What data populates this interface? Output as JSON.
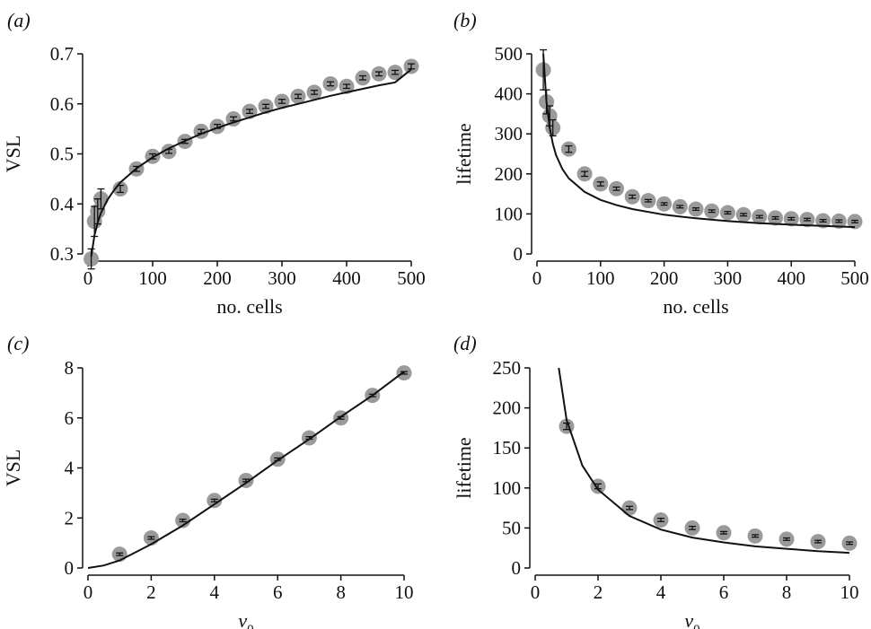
{
  "colors": {
    "points": "#9a9a9a",
    "curve": "#111111",
    "axes": "#111111",
    "background": "#ffffff"
  },
  "chart_data": [
    {
      "id": "a",
      "panel_label": "(a)",
      "type": "scatter",
      "xlabel": "no. cells",
      "xlabel_sub": "",
      "ylabel": "VSL",
      "xlim": [
        0,
        500
      ],
      "ylim": [
        0.3,
        0.7
      ],
      "xticks": [
        0,
        100,
        200,
        300,
        400,
        500
      ],
      "yticks": [
        0.3,
        0.4,
        0.5,
        0.6,
        0.7
      ],
      "ytick_labels": [
        "0.3",
        "0.4",
        "0.5",
        "0.6",
        "0.7"
      ],
      "grid": false,
      "points": {
        "x": [
          5,
          10,
          15,
          20,
          50,
          75,
          100,
          125,
          150,
          175,
          200,
          225,
          250,
          275,
          300,
          325,
          350,
          375,
          400,
          425,
          450,
          475,
          500
        ],
        "y": [
          0.29,
          0.365,
          0.385,
          0.41,
          0.43,
          0.47,
          0.495,
          0.505,
          0.525,
          0.545,
          0.555,
          0.57,
          0.585,
          0.595,
          0.605,
          0.615,
          0.623,
          0.64,
          0.635,
          0.652,
          0.66,
          0.663,
          0.675
        ],
        "err": [
          0.02,
          0.03,
          0.025,
          0.02,
          0.007,
          0.005,
          0.005,
          0.004,
          0.004,
          0.004,
          0.004,
          0.004,
          0.004,
          0.004,
          0.004,
          0.004,
          0.004,
          0.004,
          0.004,
          0.004,
          0.004,
          0.004,
          0.005
        ]
      },
      "curve": {
        "x": [
          5,
          10,
          15,
          20,
          30,
          40,
          50,
          75,
          100,
          125,
          150,
          175,
          200,
          225,
          250,
          275,
          300,
          325,
          350,
          375,
          400,
          425,
          450,
          475,
          500
        ],
        "y": [
          0.295,
          0.337,
          0.363,
          0.382,
          0.408,
          0.427,
          0.443,
          0.471,
          0.493,
          0.511,
          0.526,
          0.54,
          0.552,
          0.563,
          0.573,
          0.583,
          0.592,
          0.6,
          0.608,
          0.616,
          0.623,
          0.63,
          0.637,
          0.643,
          0.669
        ]
      }
    },
    {
      "id": "b",
      "panel_label": "(b)",
      "type": "scatter",
      "xlabel": "no. cells",
      "xlabel_sub": "",
      "ylabel": "lifetime",
      "xlim": [
        0,
        500
      ],
      "ylim": [
        0,
        500
      ],
      "xticks": [
        0,
        100,
        200,
        300,
        400,
        500
      ],
      "yticks": [
        0,
        100,
        200,
        300,
        400,
        500
      ],
      "ytick_labels": [
        "0",
        "100",
        "200",
        "300",
        "400",
        "500"
      ],
      "grid": false,
      "points": {
        "x": [
          10,
          15,
          20,
          25,
          50,
          75,
          100,
          125,
          150,
          175,
          200,
          225,
          250,
          275,
          300,
          325,
          350,
          375,
          400,
          425,
          450,
          475,
          500
        ],
        "y": [
          460,
          380,
          345,
          315,
          262,
          200,
          175,
          163,
          143,
          133,
          125,
          118,
          112,
          107,
          103,
          98,
          93,
          90,
          88,
          86,
          83,
          82,
          81
        ],
        "err": [
          50,
          30,
          25,
          20,
          8,
          6,
          5,
          4,
          4,
          3,
          3,
          3,
          3,
          3,
          3,
          3,
          3,
          3,
          3,
          3,
          3,
          3,
          3
        ]
      },
      "curve": {
        "x": [
          10,
          12,
          15,
          20,
          25,
          30,
          40,
          50,
          75,
          100,
          125,
          150,
          200,
          250,
          300,
          350,
          400,
          450,
          500
        ],
        "y": [
          500,
          450,
          380,
          315,
          275,
          247,
          212,
          189,
          155,
          135,
          122,
          112,
          98,
          89,
          82,
          77,
          73,
          70,
          67
        ]
      }
    },
    {
      "id": "c",
      "panel_label": "(c)",
      "type": "scatter",
      "xlabel": "v",
      "xlabel_sub": "0",
      "ylabel": "VSL",
      "xlim": [
        0,
        10
      ],
      "ylim": [
        0,
        8
      ],
      "xticks": [
        0,
        2,
        4,
        6,
        8,
        10
      ],
      "yticks": [
        0,
        2,
        4,
        6,
        8
      ],
      "ytick_labels": [
        "0",
        "2",
        "4",
        "6",
        "8"
      ],
      "grid": false,
      "points": {
        "x": [
          1,
          2,
          3,
          4,
          5,
          6,
          7,
          8,
          9,
          10
        ],
        "y": [
          0.55,
          1.2,
          1.9,
          2.7,
          3.5,
          4.35,
          5.2,
          6.0,
          6.9,
          7.8
        ],
        "err": [
          0.05,
          0.05,
          0.05,
          0.05,
          0.05,
          0.05,
          0.05,
          0.05,
          0.05,
          0.05
        ]
      },
      "curve": {
        "x": [
          0,
          0.5,
          1,
          2,
          3,
          4,
          5,
          6,
          7,
          8,
          9,
          10
        ],
        "y": [
          0,
          0.1,
          0.3,
          0.95,
          1.7,
          2.55,
          3.4,
          4.3,
          5.15,
          6.05,
          6.9,
          7.85
        ]
      }
    },
    {
      "id": "d",
      "panel_label": "(d)",
      "type": "scatter",
      "xlabel": "v",
      "xlabel_sub": "0",
      "ylabel": "lifetime",
      "xlim": [
        0,
        10
      ],
      "ylim": [
        0,
        250
      ],
      "xticks": [
        0,
        2,
        4,
        6,
        8,
        10
      ],
      "yticks": [
        0,
        50,
        100,
        150,
        200,
        250
      ],
      "ytick_labels": [
        "0",
        "50",
        "100",
        "150",
        "200",
        "250"
      ],
      "grid": false,
      "points": {
        "x": [
          1,
          2,
          3,
          4,
          5,
          6,
          7,
          8,
          9,
          10
        ],
        "y": [
          177,
          102,
          75,
          60,
          50,
          44,
          40,
          36,
          33,
          31
        ],
        "err": [
          4,
          3,
          2,
          2,
          2,
          1.5,
          1.5,
          1.5,
          1.5,
          1.5
        ]
      },
      "curve": {
        "x": [
          0.75,
          1,
          1.5,
          2,
          3,
          4,
          5,
          6,
          7,
          8,
          9,
          10
        ],
        "y": [
          250,
          185,
          128,
          98,
          65,
          48,
          38,
          32,
          27,
          24,
          21,
          19
        ]
      }
    }
  ]
}
